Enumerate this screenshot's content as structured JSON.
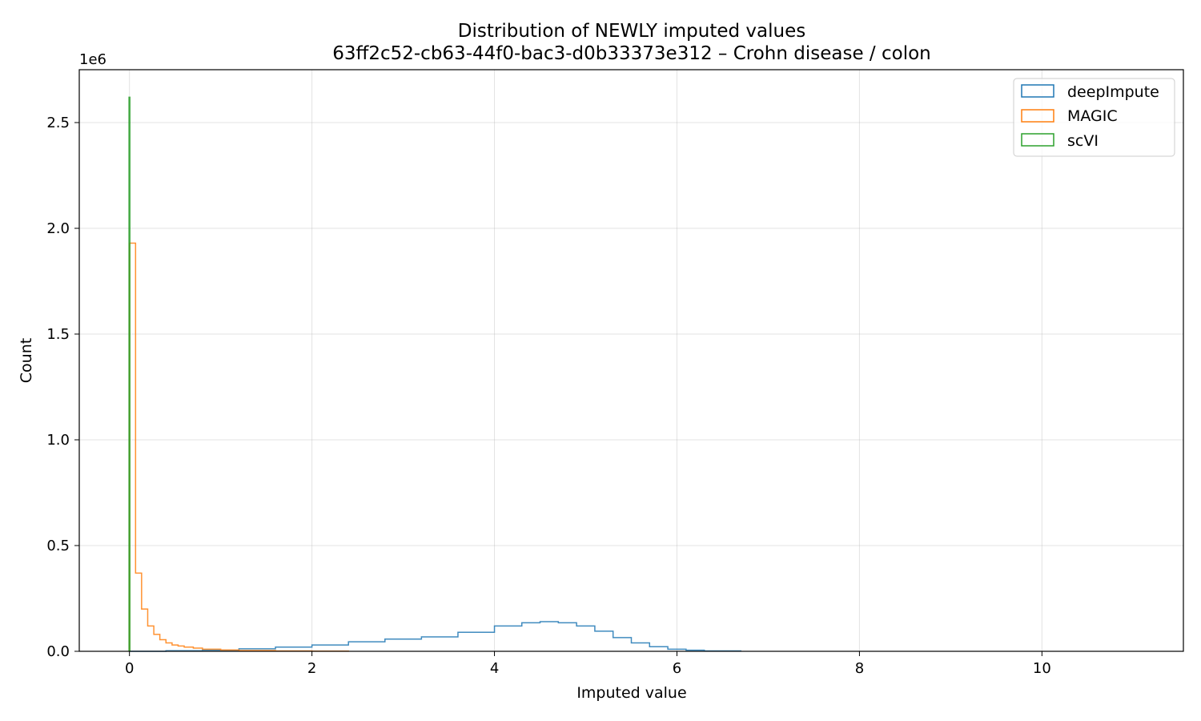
{
  "chart_data": {
    "type": "histogram",
    "title": "Distribution of NEWLY imputed values",
    "subtitle": "63ff2c52-cb63-44f0-bac3-d0b33373e312 – Crohn disease / colon",
    "xlabel": "Imputed value",
    "ylabel": "Count",
    "y_multiplier": "1e6",
    "xlim": [
      -0.55,
      11.55
    ],
    "ylim": [
      0,
      2.75
    ],
    "x_ticks": [
      0,
      2,
      4,
      6,
      8,
      10
    ],
    "x_tick_labels": [
      "0",
      "2",
      "4",
      "6",
      "8",
      "10"
    ],
    "y_ticks": [
      0.0,
      0.5,
      1.0,
      1.5,
      2.0,
      2.5
    ],
    "y_tick_labels": [
      "0.0",
      "0.5",
      "1.0",
      "1.5",
      "2.0",
      "2.5"
    ],
    "grid": true,
    "legend_position": "top-right",
    "series": [
      {
        "name": "deepImpute",
        "color": "#1f77b4",
        "x": [
          0.0,
          0.4,
          0.8,
          1.2,
          1.6,
          2.0,
          2.4,
          2.8,
          3.2,
          3.6,
          4.0,
          4.3,
          4.5,
          4.7,
          4.9,
          5.1,
          5.3,
          5.5,
          5.7,
          5.9,
          6.1,
          6.3,
          6.7
        ],
        "counts": [
          0.0,
          0.003,
          0.005,
          0.012,
          0.02,
          0.03,
          0.045,
          0.058,
          0.068,
          0.09,
          0.12,
          0.135,
          0.14,
          0.135,
          0.12,
          0.095,
          0.065,
          0.04,
          0.022,
          0.01,
          0.005,
          0.002,
          0.0
        ]
      },
      {
        "name": "MAGIC",
        "color": "#ff7f0e",
        "x": [
          0.0,
          0.067,
          0.133,
          0.2,
          0.267,
          0.333,
          0.4,
          0.467,
          0.533,
          0.6,
          0.7,
          0.8,
          1.0,
          1.2,
          1.6,
          2.0,
          2.4
        ],
        "counts": [
          1.93,
          0.37,
          0.2,
          0.12,
          0.08,
          0.055,
          0.04,
          0.03,
          0.025,
          0.02,
          0.015,
          0.01,
          0.006,
          0.004,
          0.002,
          0.001,
          0.0
        ]
      },
      {
        "name": "scVI",
        "color": "#2ca02c",
        "x": [
          -0.005,
          0.005
        ],
        "counts": [
          2.62,
          0.0
        ]
      }
    ]
  }
}
